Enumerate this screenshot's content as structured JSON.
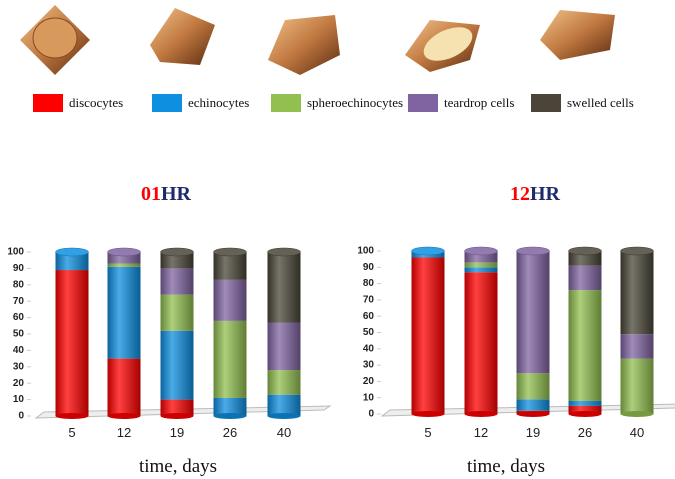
{
  "chart_data": [
    {
      "type": "stacked-cylinder-bar",
      "title": {
        "number": "01",
        "unit": "HR"
      },
      "x_label": "time, days",
      "categories": [
        "5",
        "12",
        "19",
        "26",
        "40"
      ],
      "ylim": [
        0,
        100
      ],
      "yticks": [
        0,
        10,
        20,
        30,
        40,
        50,
        60,
        70,
        80,
        90,
        100
      ],
      "series": [
        {
          "name": "discocytes",
          "color": "#ff0000",
          "values": [
            89,
            35,
            10,
            0,
            0
          ]
        },
        {
          "name": "echinocytes",
          "color": "#0e8fe0",
          "values": [
            11,
            56,
            42,
            11,
            13
          ]
        },
        {
          "name": "spheroechinocytes",
          "color": "#92c050",
          "values": [
            0,
            2,
            22,
            47,
            15
          ]
        },
        {
          "name": "teardrop cells",
          "color": "#8064a2",
          "values": [
            0,
            7,
            16,
            25,
            29
          ]
        },
        {
          "name": "swelled cells",
          "color": "#4a4538",
          "values": [
            0,
            0,
            10,
            17,
            43
          ]
        }
      ]
    },
    {
      "type": "stacked-cylinder-bar",
      "title": {
        "number": "12",
        "unit": "HR"
      },
      "x_label": "time, days",
      "categories": [
        "5",
        "12",
        "19",
        "26",
        "40"
      ],
      "ylim": [
        0,
        100
      ],
      "yticks": [
        0,
        10,
        20,
        30,
        40,
        50,
        60,
        70,
        80,
        90,
        100
      ],
      "series": [
        {
          "name": "discocytes",
          "color": "#ff0000",
          "values": [
            96,
            87,
            2,
            5,
            0
          ]
        },
        {
          "name": "echinocytes",
          "color": "#0e8fe0",
          "values": [
            4,
            3,
            7,
            3,
            0
          ]
        },
        {
          "name": "spheroechinocytes",
          "color": "#92c050",
          "values": [
            0,
            3,
            16,
            68,
            34
          ]
        },
        {
          "name": "teardrop cells",
          "color": "#8064a2",
          "values": [
            0,
            7,
            75,
            15,
            15
          ]
        },
        {
          "name": "swelled cells",
          "color": "#4a4538",
          "values": [
            0,
            0,
            0,
            9,
            51
          ]
        }
      ]
    }
  ]
}
